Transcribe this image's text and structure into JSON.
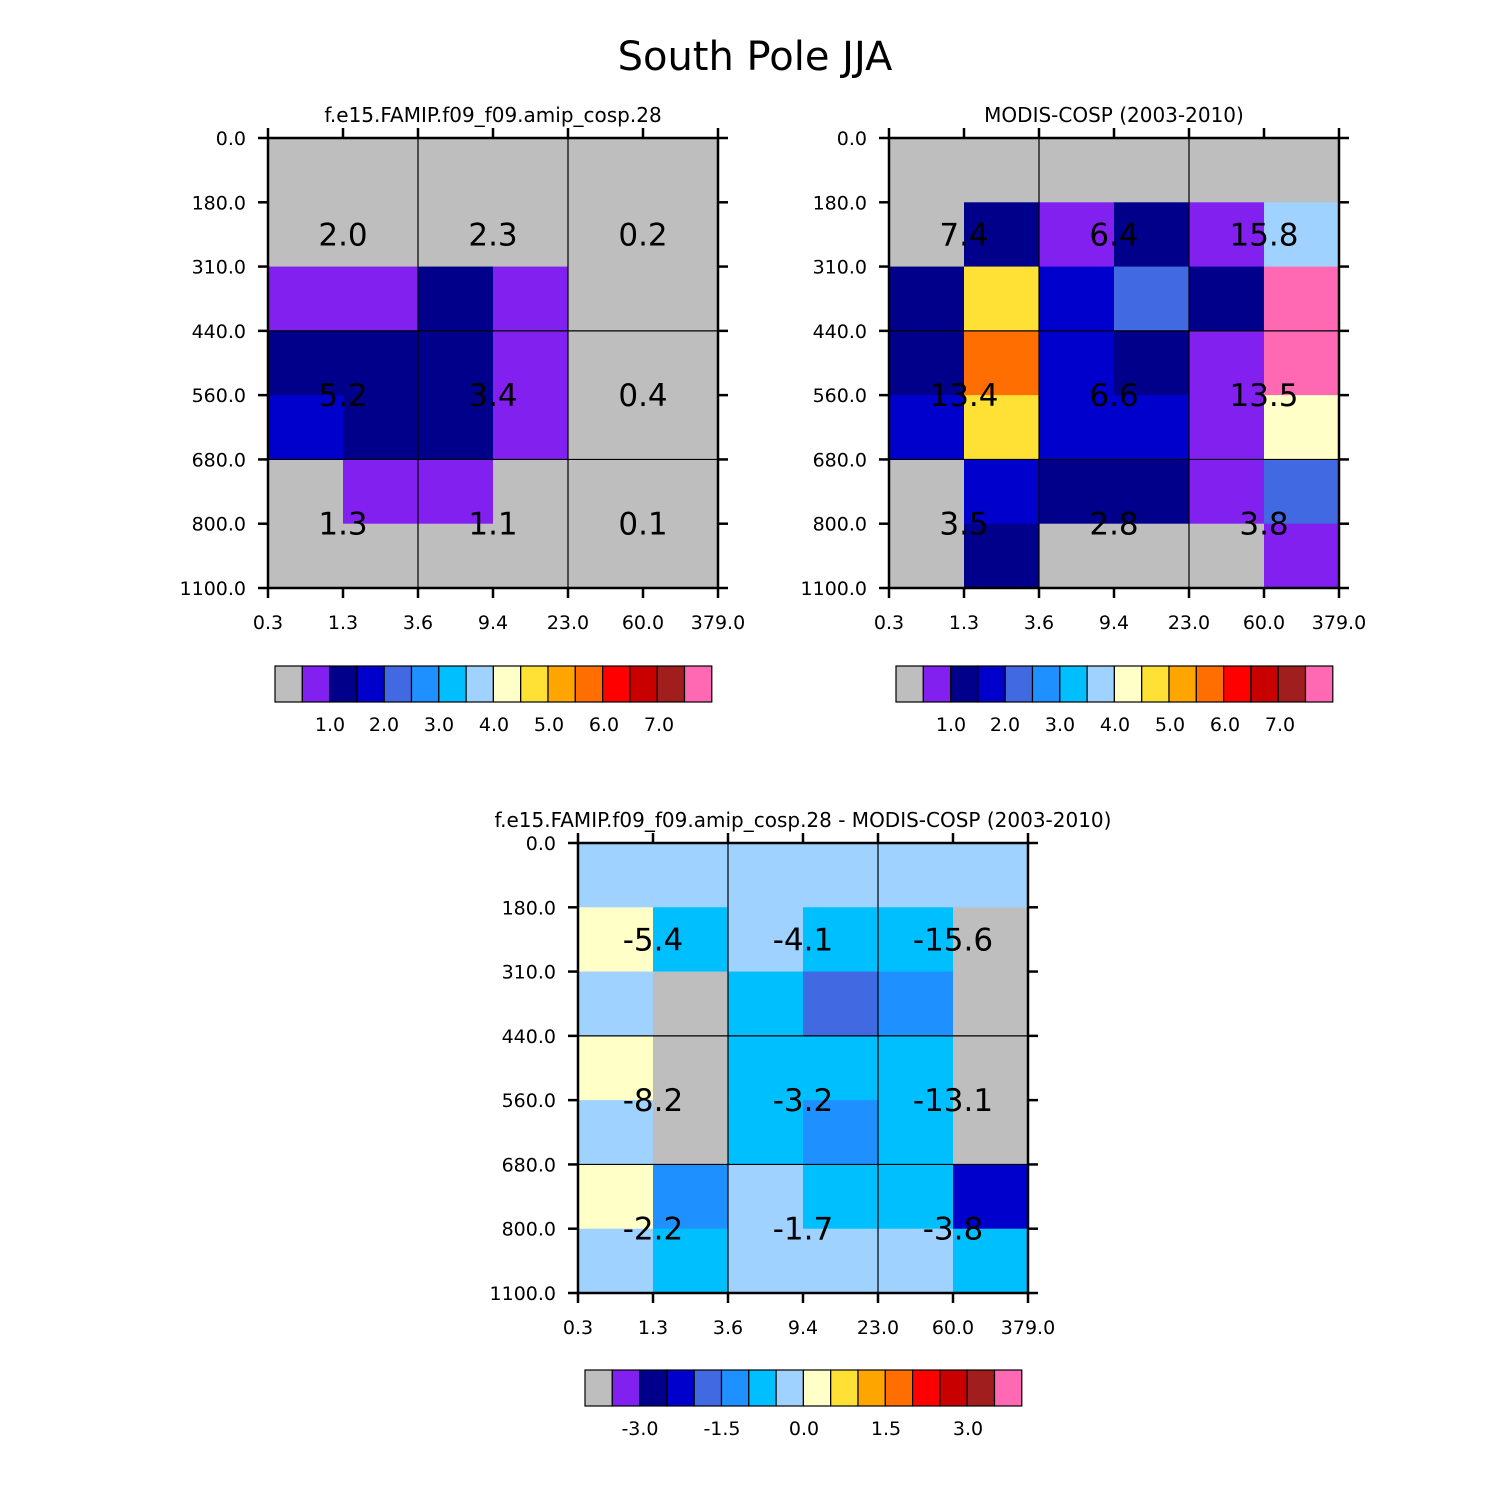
{
  "figure": {
    "title": "South Pole JJA"
  },
  "colors": {
    "palette": [
      "#bebebe",
      "#8220f0",
      "#00008b",
      "#0000cd",
      "#4169e1",
      "#1e90ff",
      "#00bfff",
      "#a0d2ff",
      "#ffffc8",
      "#ffe135",
      "#ffa500",
      "#ff6e00",
      "#ff0000",
      "#c80000",
      "#a01e1e",
      "#ff69b4"
    ]
  },
  "chart_data": [
    {
      "type": "heatmap",
      "title": "f.e15.FAMIP.f09_f09.amip_cosp.28",
      "xlabel": "",
      "ylabel": "",
      "x_ticks": [
        "0.3",
        "1.3",
        "3.6",
        "9.4",
        "23.0",
        "60.0",
        "379.0"
      ],
      "y_ticks": [
        "0.0",
        "180.0",
        "310.0",
        "440.0",
        "560.0",
        "680.0",
        "800.0",
        "1100.0"
      ],
      "color_index_grid": [
        [
          0,
          0,
          0,
          0,
          0,
          0
        ],
        [
          0,
          0,
          0,
          0,
          0,
          0
        ],
        [
          1,
          1,
          2,
          1,
          0,
          0
        ],
        [
          2,
          2,
          2,
          1,
          0,
          0
        ],
        [
          3,
          2,
          2,
          1,
          0,
          0
        ],
        [
          0,
          1,
          1,
          0,
          0,
          0
        ],
        [
          0,
          0,
          0,
          0,
          0,
          0
        ]
      ],
      "group_labels": [
        "2.0",
        "2.3",
        "0.2",
        "5.2",
        "3.4",
        "0.4",
        "1.3",
        "1.1",
        "0.1"
      ],
      "colorbar_labels": [
        "1.0",
        "2.0",
        "3.0",
        "4.0",
        "5.0",
        "6.0",
        "7.0"
      ]
    },
    {
      "type": "heatmap",
      "title": "MODIS-COSP (2003-2010)",
      "xlabel": "",
      "ylabel": "",
      "x_ticks": [
        "0.3",
        "1.3",
        "3.6",
        "9.4",
        "23.0",
        "60.0",
        "379.0"
      ],
      "y_ticks": [
        "0.0",
        "180.0",
        "310.0",
        "440.0",
        "560.0",
        "680.0",
        "800.0",
        "1100.0"
      ],
      "color_index_grid": [
        [
          0,
          0,
          0,
          0,
          0,
          0
        ],
        [
          0,
          2,
          1,
          2,
          1,
          7
        ],
        [
          2,
          9,
          3,
          4,
          2,
          15
        ],
        [
          2,
          11,
          3,
          2,
          1,
          15
        ],
        [
          3,
          9,
          3,
          3,
          1,
          8
        ],
        [
          0,
          3,
          2,
          2,
          1,
          4
        ],
        [
          0,
          2,
          0,
          0,
          0,
          1
        ]
      ],
      "group_labels": [
        "7.4",
        "6.4",
        "15.8",
        "13.4",
        "6.6",
        "13.5",
        "3.5",
        "2.8",
        "3.8"
      ],
      "colorbar_labels": [
        "1.0",
        "2.0",
        "3.0",
        "4.0",
        "5.0",
        "6.0",
        "7.0"
      ]
    },
    {
      "type": "heatmap",
      "title": "f.e15.FAMIP.f09_f09.amip_cosp.28 - MODIS-COSP (2003-2010)",
      "xlabel": "",
      "ylabel": "",
      "x_ticks": [
        "0.3",
        "1.3",
        "3.6",
        "9.4",
        "23.0",
        "60.0",
        "379.0"
      ],
      "y_ticks": [
        "0.0",
        "180.0",
        "310.0",
        "440.0",
        "560.0",
        "680.0",
        "800.0",
        "1100.0"
      ],
      "color_index_grid": [
        [
          7,
          7,
          7,
          7,
          7,
          7
        ],
        [
          8,
          6,
          7,
          6,
          6,
          0
        ],
        [
          7,
          0,
          6,
          4,
          5,
          0
        ],
        [
          8,
          0,
          6,
          6,
          6,
          0
        ],
        [
          7,
          0,
          6,
          5,
          6,
          0
        ],
        [
          8,
          5,
          7,
          6,
          6,
          3
        ],
        [
          7,
          6,
          7,
          7,
          7,
          6
        ]
      ],
      "group_labels": [
        "-5.4",
        "-4.1",
        "-15.6",
        "-8.2",
        "-3.2",
        "-13.1",
        "-2.2",
        "-1.7",
        "-3.8"
      ],
      "colorbar_labels": [
        "-3.0",
        "-1.5",
        "0.0",
        "1.5",
        "3.0"
      ]
    }
  ]
}
